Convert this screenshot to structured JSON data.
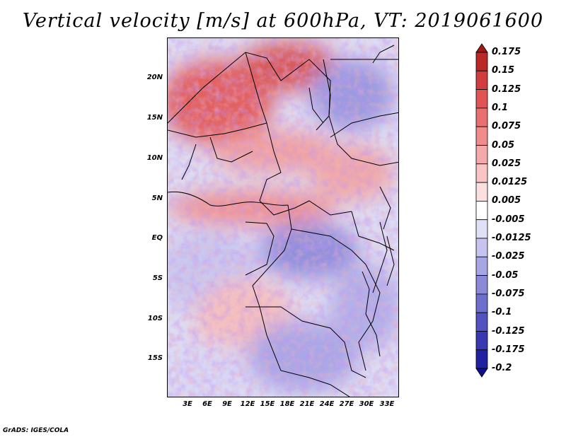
{
  "title": "Vertical velocity [m/s] at 600hPa, VT: 2019061600",
  "map": {
    "lat_labels": [
      "20N",
      "15N",
      "10N",
      "5N",
      "EQ",
      "5S",
      "10S",
      "15S"
    ],
    "lon_labels": [
      "3E",
      "6E",
      "9E",
      "12E",
      "15E",
      "18E",
      "21E",
      "24E",
      "27E",
      "30E",
      "33E"
    ],
    "region": "Central Africa"
  },
  "colorbar": {
    "labels": [
      "0.175",
      "0.15",
      "0.125",
      "0.1",
      "0.075",
      "0.05",
      "0.025",
      "0.0125",
      "0.005",
      "-0.005",
      "-0.0125",
      "-0.025",
      "-0.05",
      "-0.075",
      "-0.1",
      "-0.125",
      "-0.175",
      "-0.2"
    ],
    "colors": [
      "#a01818",
      "#bb2828",
      "#d23c3c",
      "#e25454",
      "#ea7070",
      "#f08c8c",
      "#f4a8a8",
      "#f8c4c4",
      "#fbe0e0",
      "#ffffff",
      "#e0e0f6",
      "#c4c4ee",
      "#a6a6e4",
      "#8a8ad8",
      "#6e6ecc",
      "#5252c0",
      "#3838b0",
      "#2020a0",
      "#10108a"
    ]
  },
  "credit": "GrADS: IGES/COLA"
}
